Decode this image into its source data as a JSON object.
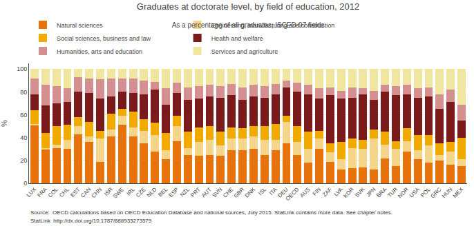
{
  "chart_data": {
    "type": "bar",
    "stacked": true,
    "title": "Graduates at doctorate level, by field of education, 2012",
    "subtitle": "As a percentage of all graduates, ISCED-97 fields",
    "ylabel": "%",
    "annotations": [
      "Source:  OECD calculations based on OECD Education Database and national sources, July 2015. StatLink contains more data. See chapter notes.",
      "StatLink  http://dx.doi.org/10.1787/888933273579"
    ],
    "categories": [
      "LUX",
      "FRA",
      "COL",
      "CHL",
      "EST",
      "CAN",
      "CHN",
      "ISR",
      "SWE",
      "IRL",
      "CZE",
      "NLD",
      "BEL",
      "ESP",
      "NZL",
      "PRT",
      "AUT",
      "SVN",
      "CHE",
      "GBR",
      "DNK",
      "ISL",
      "ITA",
      "DEU",
      "OECD",
      "AUS",
      "FIN",
      "ZAF",
      "LVA",
      "KOR",
      "SVK",
      "JPN",
      "BRA",
      "TUR",
      "NOR",
      "USA",
      "POL",
      "GRC",
      "HUN",
      "MEX"
    ],
    "series": [
      {
        "name": "Natural sciences",
        "color": "#E8720C",
        "values": [
          51,
          30,
          31,
          30,
          43,
          36,
          19,
          41,
          51,
          41,
          35,
          28,
          21,
          37,
          25,
          24,
          25,
          24,
          29,
          29,
          30,
          25,
          29,
          35,
          25,
          18,
          30,
          19,
          12,
          13,
          14,
          12,
          22,
          15,
          28,
          21,
          18,
          20,
          16,
          15
        ]
      },
      {
        "name": "Engineering, manufacturing and construction",
        "color": "#F5D58A",
        "values": [
          1,
          1,
          3,
          8,
          7,
          5,
          20,
          6,
          8,
          8,
          11,
          14,
          8,
          13,
          6,
          12,
          13,
          9,
          10,
          10,
          11,
          13,
          9,
          19,
          11,
          12,
          9,
          8,
          9,
          18,
          16,
          27,
          12,
          15,
          9,
          8,
          15,
          5,
          12,
          6
        ]
      },
      {
        "name": "Social sciences, business and law",
        "color": "#F2AA00",
        "values": [
          12,
          13,
          16,
          13,
          8,
          13,
          7,
          14,
          6,
          14,
          10,
          11,
          15,
          9,
          14,
          13,
          12,
          12,
          10,
          9,
          9,
          12,
          14,
          5,
          14,
          15,
          7,
          8,
          15,
          8,
          8,
          8,
          11,
          7,
          11,
          13,
          9,
          10,
          8,
          19
        ]
      },
      {
        "name": "Health and welfare",
        "color": "#7B1A1A",
        "values": [
          14,
          24,
          20,
          20,
          22,
          25,
          28,
          15,
          15,
          16,
          22,
          29,
          25,
          20,
          28,
          25,
          26,
          30,
          28,
          25,
          26,
          25,
          26,
          25,
          30,
          33,
          28,
          42,
          38,
          36,
          40,
          26,
          35,
          40,
          30,
          33,
          34,
          30,
          35,
          15
        ]
      },
      {
        "name": "Humanities, arts and education",
        "color": "#D49090",
        "values": [
          14,
          18,
          15,
          12,
          13,
          13,
          17,
          16,
          12,
          13,
          12,
          7,
          14,
          9,
          11,
          11,
          10,
          10,
          10,
          11,
          10,
          10,
          9,
          6,
          8,
          8,
          9,
          7,
          7,
          9,
          5,
          8,
          6,
          8,
          8,
          8,
          8,
          13,
          11,
          14
        ]
      },
      {
        "name": "Services and agriculture",
        "color": "#F0E6A0",
        "values": [
          8,
          14,
          15,
          17,
          7,
          8,
          9,
          8,
          8,
          8,
          10,
          11,
          17,
          12,
          16,
          15,
          14,
          15,
          13,
          16,
          14,
          15,
          13,
          10,
          12,
          14,
          17,
          16,
          19,
          16,
          17,
          19,
          14,
          15,
          14,
          17,
          16,
          22,
          18,
          31
        ]
      }
    ],
    "ylim": [
      0,
      105
    ],
    "yticks": [
      0,
      20,
      40,
      60,
      80,
      100
    ],
    "grid": true,
    "legend": "top"
  }
}
